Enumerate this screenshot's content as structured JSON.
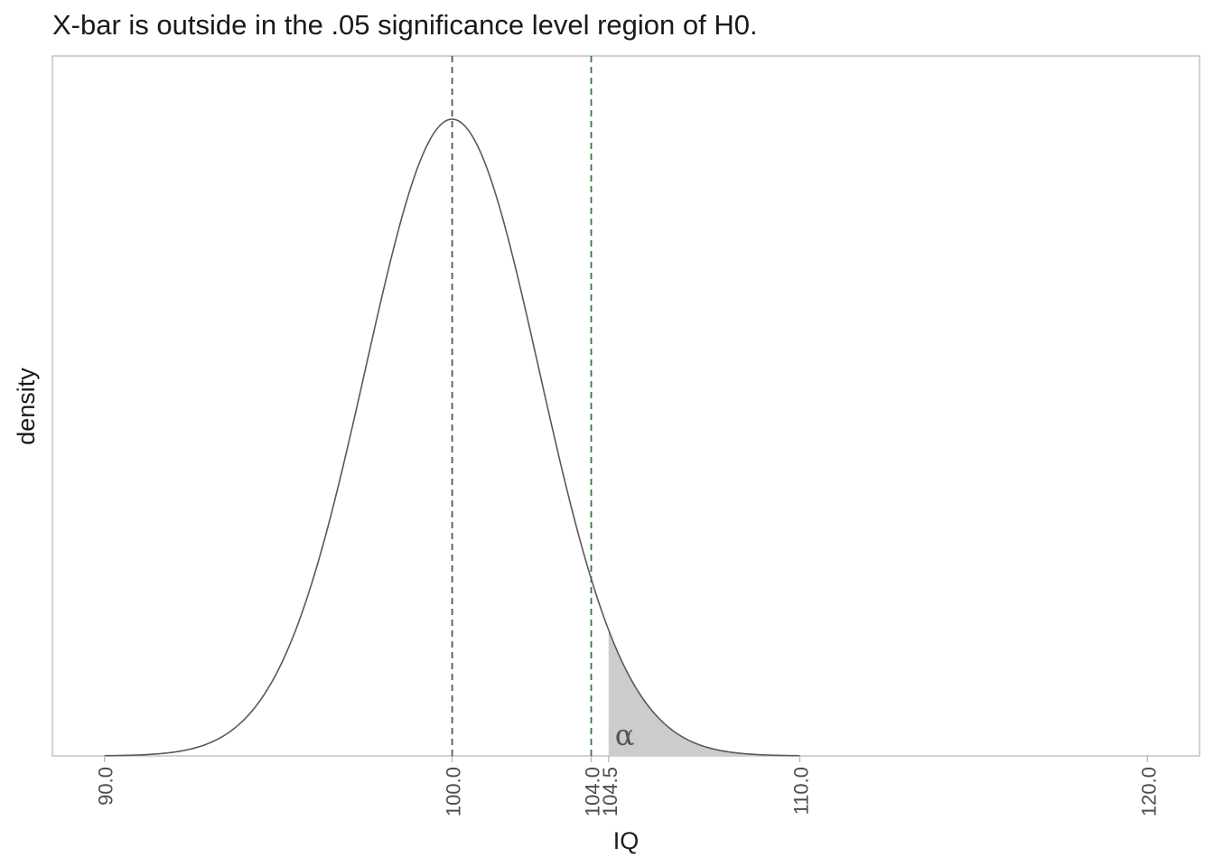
{
  "chart_data": {
    "type": "area",
    "title": "X-bar is outside in the .05 significance level region of H0.",
    "xlabel": "IQ",
    "ylabel": "density",
    "xlim": [
      88.5,
      121.5
    ],
    "distribution": {
      "mean": 100,
      "sd": 2.5,
      "x_range": [
        90,
        110
      ]
    },
    "x_ticks": [
      "90.0",
      "100.0",
      "104.0",
      "104.5",
      "110.0",
      "120.0"
    ],
    "x_tick_values": [
      90,
      100,
      104,
      104.5,
      110,
      120
    ],
    "vlines": [
      {
        "x": 100,
        "color": "#555555",
        "style": "dashed"
      },
      {
        "x": 104,
        "color": "#2e7d32",
        "style": "dashed"
      }
    ],
    "shaded_region": {
      "from": 104.5,
      "to": 110,
      "color": "#cccccc",
      "label": "α"
    },
    "grid": false,
    "colors": {
      "curve": "#595959",
      "panel_border": "#b3b3b3",
      "tick_text": "#4d4d4d"
    }
  }
}
